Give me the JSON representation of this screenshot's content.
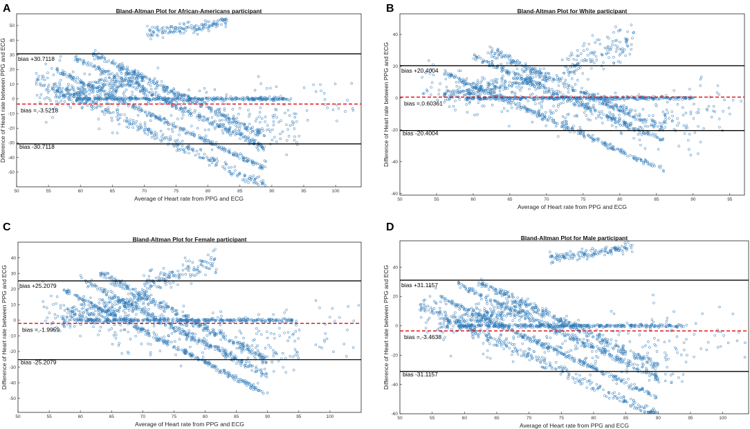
{
  "colors": {
    "points": "#2f7ab8",
    "limits": "#000000",
    "bias": "#e0141e"
  },
  "chart_data": [
    {
      "type": "scatter",
      "panel_label": "A",
      "title": "Bland-Altman Plot for African-Americans participant",
      "xlabel": "Average of Heart rate from PPG and ECG",
      "ylabel": "Difference of Heart rate between PPG and ECG",
      "xlim": [
        50,
        104
      ],
      "ylim": [
        -60,
        58
      ],
      "xticks": [
        50,
        55,
        60,
        65,
        70,
        75,
        80,
        85,
        90,
        95,
        100
      ],
      "yticks": [
        -50,
        -40,
        -30,
        -20,
        -10,
        0,
        10,
        20,
        30,
        40,
        50
      ],
      "upper_limit": 30.7118,
      "bias": -3.5218,
      "lower_limit": -30.7118,
      "upper_label": "bias +30.7118",
      "bias_label": "bias =,-3.5218",
      "lower_label": "bias -30.7118",
      "x_min": 53,
      "x_max": 91,
      "x_tail": 104,
      "spread": 8,
      "slope_bands": [
        [
          60,
          12
        ],
        [
          63,
          20
        ],
        [
          66,
          22
        ],
        [
          57,
          6
        ]
      ],
      "hi_cluster": {
        "x": [
          70,
          83
        ],
        "y": [
          44,
          58
        ]
      }
    },
    {
      "type": "scatter",
      "panel_label": "B",
      "title": "Bland-Altman Plot for White participant",
      "xlabel": "Average of Heart rate from PPG and ECG",
      "ylabel": "Difference of Heart rate between PPG and ECG",
      "xlim": [
        50,
        97
      ],
      "ylim": [
        -61,
        53
      ],
      "xticks": [
        50,
        55,
        60,
        65,
        70,
        75,
        80,
        85,
        90,
        95
      ],
      "yticks": [
        -60,
        -40,
        -20,
        0,
        20,
        40
      ],
      "upper_limit": 20.4004,
      "bias": 0.60361,
      "lower_limit": -20.4004,
      "upper_label": "bias +20.4004",
      "bias_label": "bias =,0.60361",
      "lower_label": "bias -20.4004",
      "x_min": 53,
      "x_max": 88,
      "x_tail": 97,
      "spread": 6,
      "slope_bands": [
        [
          60,
          8
        ],
        [
          64,
          18
        ],
        [
          66,
          22
        ]
      ],
      "hi_cluster": {
        "x": [
          72,
          82
        ],
        "y": [
          18,
          52
        ]
      }
    },
    {
      "type": "scatter",
      "panel_label": "C",
      "title": "Bland-Altman Plot for Female participant",
      "xlabel": "Average of Heart rate from PPG and ECG",
      "ylabel": "Difference of Heart rate between PPG and ECG",
      "xlim": [
        50,
        105
      ],
      "ylim": [
        -59,
        50
      ],
      "xticks": [
        50,
        55,
        60,
        65,
        70,
        75,
        80,
        85,
        90,
        95,
        100
      ],
      "yticks": [
        -50,
        -40,
        -30,
        -20,
        -10,
        0,
        10,
        20,
        30,
        40
      ],
      "upper_limit": 25.2079,
      "bias": -1.9959,
      "lower_limit": -25.2079,
      "upper_label": "bias +25.2079",
      "bias_label": "bias =,-1.9959",
      "lower_label": "bias -25.2079",
      "x_min": 54,
      "x_max": 92,
      "x_tail": 105,
      "spread": 7,
      "slope_bands": [
        [
          61,
          12
        ],
        [
          64,
          18
        ],
        [
          67,
          22
        ]
      ],
      "hi_cluster": {
        "x": [
          70,
          82
        ],
        "y": [
          22,
          50
        ]
      }
    },
    {
      "type": "scatter",
      "panel_label": "D",
      "title": "Bland-Altman Plot for Male participant",
      "xlabel": "Average of Heart rate from PPG and ECG",
      "ylabel": "Difference of Heart rate between PPG and ECG",
      "xlim": [
        50,
        104
      ],
      "ylim": [
        -60,
        58
      ],
      "xticks": [
        50,
        55,
        60,
        65,
        70,
        75,
        80,
        85,
        90,
        95,
        100
      ],
      "yticks": [
        -60,
        -40,
        -20,
        0,
        20,
        40
      ],
      "upper_limit": 31.1157,
      "bias": -3.4638,
      "lower_limit": -31.1157,
      "upper_label": "bias +31.1157",
      "bias_label": "bias =,-3.4638",
      "lower_label": "bias -31.1157",
      "x_min": 53,
      "x_max": 92,
      "x_tail": 104,
      "spread": 8,
      "slope_bands": [
        [
          60,
          12
        ],
        [
          63,
          20
        ],
        [
          66,
          22
        ],
        [
          57,
          6
        ]
      ],
      "hi_cluster": {
        "x": [
          73,
          86
        ],
        "y": [
          46,
          58
        ]
      }
    }
  ]
}
